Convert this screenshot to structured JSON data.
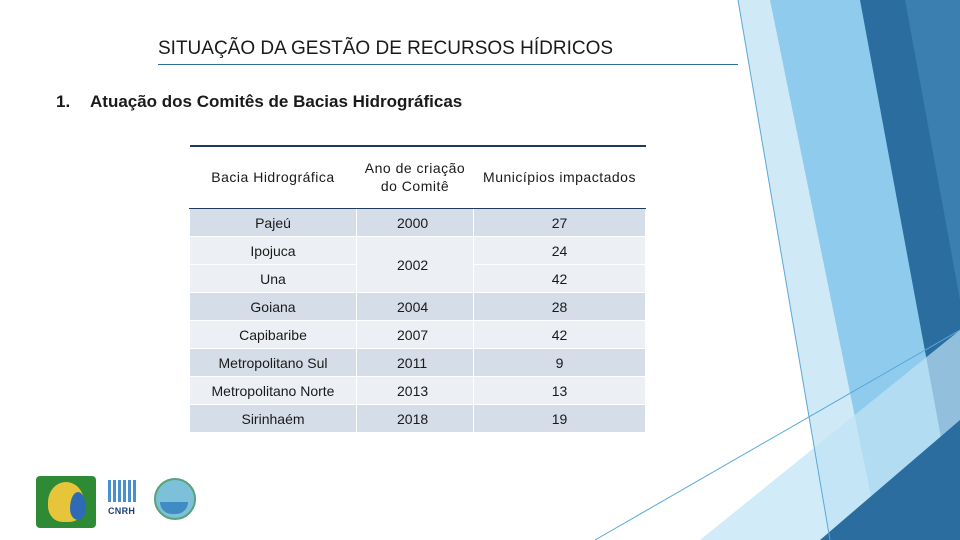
{
  "slide": {
    "title": "SITUAÇÃO DA GESTÃO DE RECURSOS HÍDRICOS",
    "subtitle_number": "1.",
    "subtitle_text": "Atuação dos Comitês de Bacias Hidrográficas"
  },
  "table": {
    "headers": {
      "basin": "Bacia Hidrográfica",
      "year": "Ano de criação do Comitê",
      "municipalities": "Municípios impactados"
    },
    "rows": [
      {
        "basin": "Pajeú",
        "year": "2000",
        "municipalities": "27"
      },
      {
        "basin": "Ipojuca",
        "year": "2002",
        "municipalities": "24"
      },
      {
        "basin": "Una",
        "municipalities": "42"
      },
      {
        "basin": "Goiana",
        "year": "2004",
        "municipalities": "28"
      },
      {
        "basin": "Capibaribe",
        "year": "2007",
        "municipalities": "42"
      },
      {
        "basin": "Metropolitano Sul",
        "year": "2011",
        "municipalities": "9"
      },
      {
        "basin": "Metropolitano Norte",
        "year": "2013",
        "municipalities": "13"
      },
      {
        "basin": "Sirinhaém",
        "year": "2018",
        "municipalities": "19"
      }
    ]
  },
  "logos": {
    "cnrh_text": "CNRH",
    "logo_a_icon": "water-plan-logo",
    "logo_c_icon": "basin-committee-logo"
  },
  "colors": {
    "row_odd": "#d5dde8",
    "row_even": "#ecf0f5",
    "accent_dark": "#2a6d9e",
    "accent_light": "#a9d4ee"
  }
}
